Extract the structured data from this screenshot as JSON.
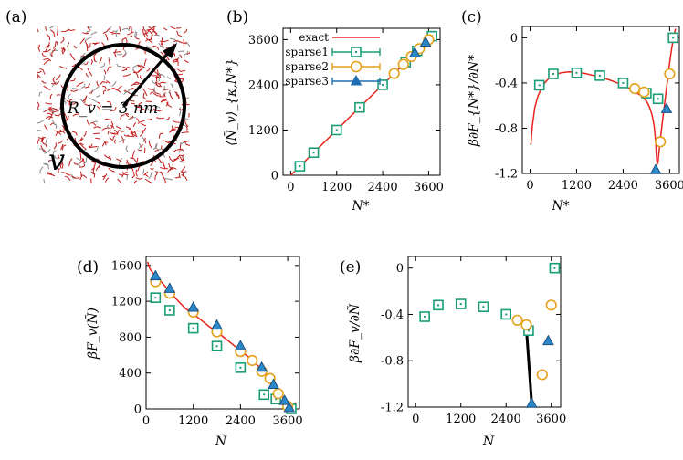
{
  "figure": {
    "colors": {
      "exact": "#e8231c",
      "sparse1": "#1a9e77",
      "sparse2": "#e6a11a",
      "sparse3": "#1f6fb0",
      "black": "#000000",
      "particle": "#c21b1b"
    }
  },
  "panel_a": {
    "label": "(a)",
    "radius_label": "R_v = 3 nm",
    "volume_label": "v"
  },
  "chart_data": [
    {
      "id": "b",
      "label": "(b)",
      "type": "line+scatter",
      "xlabel": "N*",
      "ylabel": "⟨Ñ_v⟩_{κ,N*}",
      "xlim": [
        -200,
        3900
      ],
      "ylim": [
        0,
        3900
      ],
      "xticks": [
        0,
        1200,
        2400,
        3600
      ],
      "yticks": [
        0,
        1200,
        2400,
        3600
      ],
      "legend": [
        "exact",
        "sparse1",
        "sparse2",
        "sparse3"
      ],
      "series": [
        {
          "name": "exact",
          "style": "line",
          "x": [
            0,
            3800
          ],
          "y": [
            0,
            3800
          ]
        },
        {
          "name": "sparse1",
          "style": "square",
          "x": [
            240,
            600,
            1200,
            1800,
            2400,
            3000,
            3300,
            3690
          ],
          "y": [
            240,
            600,
            1200,
            1800,
            2400,
            3000,
            3300,
            3690
          ]
        },
        {
          "name": "sparse2",
          "style": "circle",
          "x": [
            2700,
            2940,
            3150,
            3360,
            3600
          ],
          "y": [
            2700,
            2940,
            3150,
            3360,
            3600
          ]
        },
        {
          "name": "sparse3",
          "style": "triangle",
          "x": [
            3240,
            3520
          ],
          "y": [
            3240,
            3520
          ]
        }
      ]
    },
    {
      "id": "c",
      "label": "(c)",
      "type": "line+scatter",
      "xlabel": "N*",
      "ylabel": "β∂F_{N*}/∂N*",
      "xlim": [
        -200,
        3850
      ],
      "ylim": [
        -1.2,
        0.1
      ],
      "xticks": [
        0,
        1200,
        2400,
        3600
      ],
      "yticks": [
        0,
        -0.4,
        -0.8,
        -1.2
      ],
      "series": [
        {
          "name": "exact",
          "style": "line",
          "x": [
            20,
            60,
            120,
            200,
            300,
            400,
            500,
            600,
            700,
            800,
            900,
            1000,
            1100,
            1200,
            1300,
            1400,
            1500,
            1600,
            1700,
            1800,
            1900,
            2000,
            2100,
            2200,
            2300,
            2400,
            2500,
            2600,
            2700,
            2800,
            2900,
            3000,
            3050,
            3100,
            3150,
            3200,
            3240,
            3260,
            3280,
            3300,
            3330,
            3360,
            3400,
            3450,
            3500,
            3550,
            3600,
            3650,
            3700,
            3750
          ],
          "y": [
            -0.95,
            -0.78,
            -0.62,
            -0.52,
            -0.44,
            -0.39,
            -0.355,
            -0.335,
            -0.32,
            -0.31,
            -0.305,
            -0.302,
            -0.303,
            -0.305,
            -0.31,
            -0.315,
            -0.322,
            -0.33,
            -0.338,
            -0.347,
            -0.357,
            -0.368,
            -0.38,
            -0.393,
            -0.407,
            -0.422,
            -0.438,
            -0.456,
            -0.476,
            -0.498,
            -0.522,
            -0.56,
            -0.59,
            -0.63,
            -0.69,
            -0.78,
            -0.92,
            -1.05,
            -1.12,
            -1.1,
            -1.0,
            -0.9,
            -0.78,
            -0.64,
            -0.5,
            -0.36,
            -0.22,
            -0.1,
            0.0,
            0.08
          ]
        },
        {
          "name": "sparse1",
          "style": "square",
          "x": [
            240,
            600,
            1200,
            1800,
            2400,
            3000,
            3300,
            3690
          ],
          "y": [
            -0.42,
            -0.32,
            -0.31,
            -0.335,
            -0.4,
            -0.49,
            -0.54,
            0.0
          ]
        },
        {
          "name": "sparse2",
          "style": "circle",
          "x": [
            2700,
            2940,
            3360,
            3600
          ],
          "y": [
            -0.45,
            -0.48,
            -0.92,
            -0.32
          ]
        },
        {
          "name": "sparse3",
          "style": "triangle",
          "x": [
            3240,
            3520
          ],
          "y": [
            -1.17,
            -0.63
          ]
        }
      ]
    },
    {
      "id": "d",
      "label": "(d)",
      "type": "line+scatter",
      "xlabel": "Ñ",
      "ylabel": "βF_v(Ñ)",
      "xlim": [
        0,
        3900
      ],
      "ylim": [
        0,
        1700
      ],
      "xticks": [
        0,
        1200,
        2400,
        3600
      ],
      "yticks": [
        0,
        400,
        800,
        1200,
        1600
      ],
      "series": [
        {
          "name": "exact",
          "style": "line",
          "x": [
            40,
            100,
            200,
            300,
            400,
            600,
            800,
            1000,
            1200,
            1400,
            1600,
            1800,
            2000,
            2200,
            2400,
            2600,
            2800,
            3000,
            3100,
            3200,
            3300,
            3400,
            3500,
            3560,
            3600,
            3640,
            3680,
            3720,
            3760,
            3800
          ],
          "y": [
            1640,
            1560,
            1500,
            1460,
            1410,
            1310,
            1210,
            1120,
            1060,
            990,
            920,
            860,
            790,
            720,
            650,
            580,
            500,
            420,
            370,
            320,
            260,
            190,
            110,
            70,
            40,
            20,
            8,
            10,
            30,
            70
          ]
        },
        {
          "name": "sparse1",
          "style": "square",
          "x": [
            240,
            600,
            1200,
            1800,
            2400,
            3000,
            3300,
            3690
          ],
          "y": [
            1240,
            1100,
            900,
            700,
            460,
            160,
            110,
            0
          ]
        },
        {
          "name": "sparse2",
          "style": "circle",
          "x": [
            240,
            600,
            1200,
            1800,
            2400,
            2700,
            2940,
            3150,
            3360,
            3600
          ],
          "y": [
            1420,
            1290,
            1080,
            860,
            640,
            540,
            420,
            340,
            170,
            30
          ]
        },
        {
          "name": "sparse3",
          "style": "triangle",
          "x": [
            240,
            600,
            1200,
            1800,
            2400,
            2940,
            3240,
            3520,
            3640
          ],
          "y": [
            1480,
            1340,
            1130,
            930,
            700,
            460,
            270,
            90,
            10
          ]
        }
      ]
    },
    {
      "id": "e",
      "label": "(e)",
      "type": "scatter+line",
      "xlabel": "Ñ",
      "ylabel": "β∂F_v/∂Ñ",
      "xlim": [
        -200,
        3850
      ],
      "ylim": [
        -1.2,
        0.1
      ],
      "xticks": [
        0,
        1200,
        2400,
        3600
      ],
      "yticks": [
        0,
        -0.4,
        -0.8,
        -1.2
      ],
      "series": [
        {
          "name": "sparse1",
          "style": "square",
          "x": [
            240,
            600,
            1200,
            1800,
            2400,
            3000,
            3690
          ],
          "y": [
            -0.42,
            -0.32,
            -0.31,
            -0.335,
            -0.4,
            -0.54,
            0.0
          ]
        },
        {
          "name": "sparse2",
          "style": "circle",
          "x": [
            2700,
            2940,
            3360,
            3600
          ],
          "y": [
            -0.45,
            -0.49,
            -0.92,
            -0.32
          ]
        },
        {
          "name": "sparse3",
          "style": "triangle",
          "x": [
            3080,
            3520
          ],
          "y": [
            -1.17,
            -0.63
          ]
        },
        {
          "name": "fit",
          "style": "line-black",
          "x": [
            2950,
            3080
          ],
          "y": [
            -0.57,
            -1.16
          ]
        }
      ]
    }
  ]
}
